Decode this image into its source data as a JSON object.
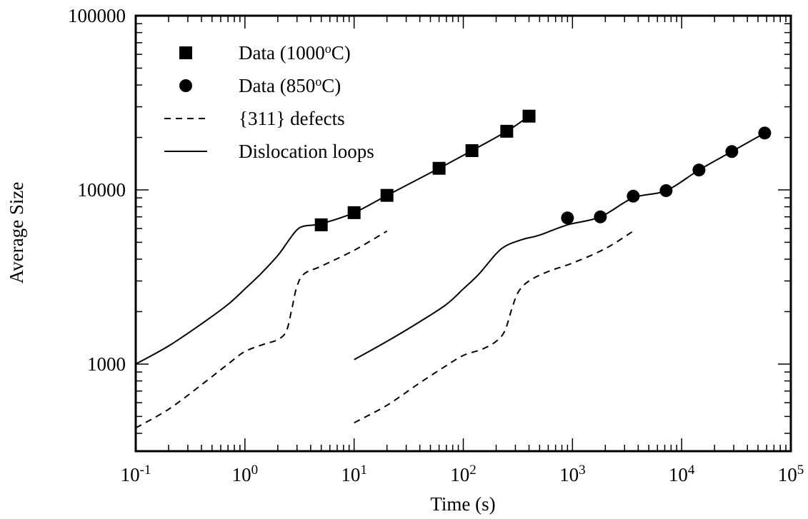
{
  "chart_data": {
    "type": "scatter",
    "title": "",
    "xlabel": "Time (s)",
    "ylabel": "Average Size",
    "x_scale": "log",
    "y_scale": "log",
    "xlim": [
      0.1,
      100000
    ],
    "ylim": [
      316,
      100000
    ],
    "x_ticks": [
      {
        "value": 0.1,
        "base": "10",
        "exp": "-1"
      },
      {
        "value": 1,
        "base": "10",
        "exp": "0"
      },
      {
        "value": 10,
        "base": "10",
        "exp": "1"
      },
      {
        "value": 100,
        "base": "10",
        "exp": "2"
      },
      {
        "value": 1000,
        "base": "10",
        "exp": "3"
      },
      {
        "value": 10000,
        "base": "10",
        "exp": "4"
      },
      {
        "value": 100000,
        "base": "10",
        "exp": "5"
      }
    ],
    "y_ticks": [
      {
        "value": 1000,
        "label": "1000"
      },
      {
        "value": 10000,
        "label": "10000"
      },
      {
        "value": 100000,
        "label": "100000"
      }
    ],
    "grid": false,
    "legend": {
      "position": "top-left",
      "entries": [
        {
          "label": "Data (1000",
          "sup": "o",
          "suffix": "C)",
          "marker": "square"
        },
        {
          "label": "Data (850",
          "sup": "o",
          "suffix": "C)",
          "marker": "circle"
        },
        {
          "label": "{311} defects",
          "sup": "",
          "suffix": "",
          "marker": "dashed"
        },
        {
          "label": "Dislocation loops",
          "sup": "",
          "suffix": "",
          "marker": "solid"
        }
      ]
    },
    "series": [
      {
        "name": "Data (1000oC)",
        "marker": "square",
        "points": [
          [
            5,
            6300
          ],
          [
            10,
            7400
          ],
          [
            20,
            9300
          ],
          [
            60,
            13300
          ],
          [
            120,
            16800
          ],
          [
            250,
            21700
          ],
          [
            400,
            26500
          ]
        ]
      },
      {
        "name": "Data (850oC)",
        "marker": "circle",
        "points": [
          [
            900,
            6900
          ],
          [
            1800,
            7000
          ],
          [
            3600,
            9200
          ],
          [
            7200,
            9900
          ],
          [
            14400,
            13000
          ],
          [
            28800,
            16600
          ],
          [
            57600,
            21200
          ]
        ]
      },
      {
        "name": "Dislocation loops",
        "style": "solid",
        "segments": [
          [
            [
              0.1,
              1000
            ],
            [
              0.2,
              1270
            ],
            [
              0.4,
              1700
            ],
            [
              0.7,
              2200
            ],
            [
              1.0,
              2700
            ],
            [
              1.4,
              3300
            ],
            [
              2.0,
              4200
            ],
            [
              2.5,
              5100
            ],
            [
              3.0,
              5900
            ],
            [
              3.5,
              6200
            ],
            [
              5,
              6400
            ],
            [
              10,
              7400
            ],
            [
              20,
              9300
            ],
            [
              60,
              13300
            ],
            [
              120,
              16800
            ],
            [
              250,
              21700
            ],
            [
              400,
              26500
            ]
          ],
          [
            [
              10,
              1060
            ],
            [
              20,
              1350
            ],
            [
              40,
              1750
            ],
            [
              70,
              2200
            ],
            [
              100,
              2700
            ],
            [
              140,
              3300
            ],
            [
              200,
              4300
            ],
            [
              250,
              4800
            ],
            [
              350,
              5200
            ],
            [
              500,
              5500
            ],
            [
              900,
              6300
            ],
            [
              1800,
              7000
            ],
            [
              3600,
              9000
            ],
            [
              7200,
              9900
            ],
            [
              14400,
              13000
            ],
            [
              28800,
              16600
            ],
            [
              57600,
              21200
            ]
          ]
        ]
      },
      {
        "name": "{311} defects",
        "style": "dashed",
        "segments": [
          [
            [
              0.1,
              430
            ],
            [
              0.2,
              550
            ],
            [
              0.4,
              760
            ],
            [
              0.7,
              1000
            ],
            [
              1.0,
              1180
            ],
            [
              1.5,
              1300
            ],
            [
              2.0,
              1380
            ],
            [
              2.4,
              1550
            ],
            [
              2.7,
              2100
            ],
            [
              3.0,
              2800
            ],
            [
              3.5,
              3300
            ],
            [
              5,
              3650
            ],
            [
              10,
              4500
            ],
            [
              20,
              5800
            ]
          ],
          [
            [
              10,
              460
            ],
            [
              20,
              580
            ],
            [
              40,
              780
            ],
            [
              70,
              980
            ],
            [
              100,
              1120
            ],
            [
              150,
              1220
            ],
            [
              200,
              1350
            ],
            [
              240,
              1550
            ],
            [
              280,
              2100
            ],
            [
              320,
              2600
            ],
            [
              400,
              3000
            ],
            [
              600,
              3400
            ],
            [
              1000,
              3800
            ],
            [
              2000,
              4600
            ],
            [
              3600,
              5800
            ]
          ]
        ]
      }
    ]
  }
}
